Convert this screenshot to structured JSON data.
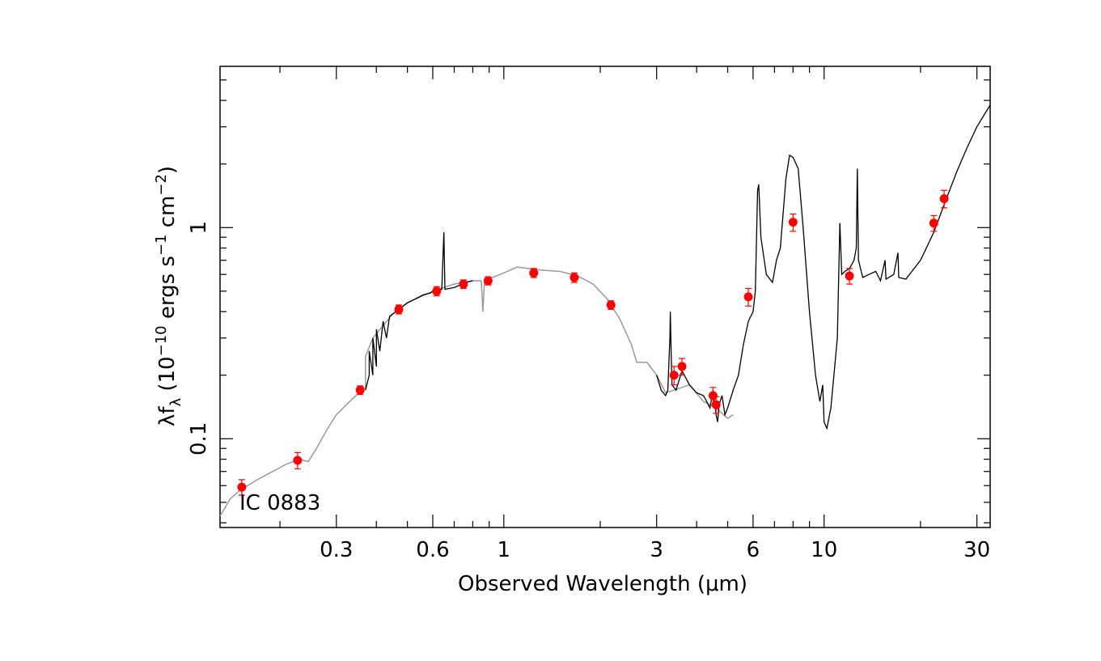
{
  "chart_data": {
    "type": "scatter",
    "annotation": "IC 0883",
    "xlabel": "Observed Wavelength (μm)",
    "ylabel": {
      "prefix": "λf",
      "sub": "λ",
      "base": " (10",
      "exp1": "−10",
      "mid": " ergs s",
      "exp2": "−1",
      "mid2": " cm",
      "exp3": "−2",
      "end": ")"
    },
    "xscale": "log",
    "yscale": "log",
    "xlim": [
      0.13,
      33
    ],
    "ylim": [
      0.038,
      5.8
    ],
    "x_tick_labels": [
      {
        "value": 0.3,
        "label": "0.3"
      },
      {
        "value": 0.6,
        "label": "0.6"
      },
      {
        "value": 1,
        "label": "1"
      },
      {
        "value": 3,
        "label": "3"
      },
      {
        "value": 6,
        "label": "6"
      },
      {
        "value": 10,
        "label": "10"
      },
      {
        "value": 30,
        "label": "30"
      }
    ],
    "y_tick_labels": [
      {
        "value": 0.1,
        "label": "0.1"
      },
      {
        "value": 1,
        "label": "1"
      }
    ],
    "photometry": {
      "color": "#ff0000",
      "points": [
        {
          "x": 0.152,
          "y": 0.059,
          "err": 0.005
        },
        {
          "x": 0.227,
          "y": 0.079,
          "err": 0.007
        },
        {
          "x": 0.356,
          "y": 0.17,
          "err": 0.008
        },
        {
          "x": 0.47,
          "y": 0.41,
          "err": 0.02
        },
        {
          "x": 0.617,
          "y": 0.5,
          "err": 0.025
        },
        {
          "x": 0.748,
          "y": 0.54,
          "err": 0.025
        },
        {
          "x": 0.893,
          "y": 0.56,
          "err": 0.025
        },
        {
          "x": 1.24,
          "y": 0.61,
          "err": 0.03
        },
        {
          "x": 1.66,
          "y": 0.58,
          "err": 0.03
        },
        {
          "x": 2.16,
          "y": 0.43,
          "err": 0.02
        },
        {
          "x": 3.4,
          "y": 0.2,
          "err": 0.02
        },
        {
          "x": 3.6,
          "y": 0.22,
          "err": 0.02
        },
        {
          "x": 4.5,
          "y": 0.16,
          "err": 0.015
        },
        {
          "x": 4.6,
          "y": 0.145,
          "err": 0.013
        },
        {
          "x": 5.8,
          "y": 0.47,
          "err": 0.045
        },
        {
          "x": 8.0,
          "y": 1.06,
          "err": 0.1
        },
        {
          "x": 12.0,
          "y": 0.59,
          "err": 0.05
        },
        {
          "x": 22.0,
          "y": 1.05,
          "err": 0.09
        },
        {
          "x": 23.7,
          "y": 1.37,
          "err": 0.13
        }
      ]
    },
    "spectrum_model": {
      "color": "#999999",
      "points": [
        [
          0.13,
          0.043
        ],
        [
          0.14,
          0.052
        ],
        [
          0.15,
          0.057
        ],
        [
          0.17,
          0.064
        ],
        [
          0.19,
          0.07
        ],
        [
          0.21,
          0.076
        ],
        [
          0.23,
          0.08
        ],
        [
          0.245,
          0.078
        ],
        [
          0.26,
          0.09
        ],
        [
          0.28,
          0.11
        ],
        [
          0.3,
          0.13
        ],
        [
          0.33,
          0.15
        ],
        [
          0.36,
          0.17
        ],
        [
          0.37,
          0.175
        ],
        [
          0.37,
          0.245
        ],
        [
          0.39,
          0.3
        ],
        [
          0.45,
          0.39
        ],
        [
          0.5,
          0.44
        ],
        [
          0.6,
          0.5
        ],
        [
          0.7,
          0.54
        ],
        [
          0.8,
          0.56
        ],
        [
          0.85,
          0.56
        ],
        [
          0.86,
          0.4
        ],
        [
          0.87,
          0.56
        ],
        [
          1.0,
          0.61
        ],
        [
          1.1,
          0.65
        ],
        [
          1.3,
          0.63
        ],
        [
          1.5,
          0.62
        ],
        [
          1.7,
          0.59
        ],
        [
          1.9,
          0.54
        ],
        [
          2.1,
          0.46
        ],
        [
          2.3,
          0.37
        ],
        [
          2.5,
          0.28
        ],
        [
          2.6,
          0.23
        ],
        [
          2.8,
          0.23
        ],
        [
          3.0,
          0.2
        ],
        [
          3.2,
          0.165
        ],
        [
          3.4,
          0.17
        ],
        [
          3.8,
          0.18
        ],
        [
          4.2,
          0.15
        ],
        [
          4.6,
          0.14
        ],
        [
          5.0,
          0.125
        ],
        [
          5.2,
          0.13
        ]
      ]
    },
    "spectrum_observed": {
      "color": "#000000",
      "segments": [
        [
          [
            0.37,
            0.17
          ],
          [
            0.38,
            0.2
          ],
          [
            0.38,
            0.26
          ],
          [
            0.39,
            0.2
          ],
          [
            0.39,
            0.3
          ],
          [
            0.4,
            0.22
          ],
          [
            0.4,
            0.33
          ],
          [
            0.41,
            0.26
          ],
          [
            0.42,
            0.36
          ],
          [
            0.43,
            0.3
          ],
          [
            0.44,
            0.38
          ],
          [
            0.46,
            0.4
          ],
          [
            0.48,
            0.42
          ],
          [
            0.5,
            0.44
          ],
          [
            0.53,
            0.46
          ],
          [
            0.56,
            0.48
          ],
          [
            0.59,
            0.49
          ],
          [
            0.6,
            0.5
          ],
          [
            0.64,
            0.51
          ],
          [
            0.65,
            0.95
          ],
          [
            0.655,
            0.51
          ],
          [
            0.7,
            0.52
          ],
          [
            0.76,
            0.55
          ],
          [
            0.8,
            0.56
          ]
        ],
        [
          [
            3.0,
            0.2
          ],
          [
            3.1,
            0.17
          ],
          [
            3.2,
            0.16
          ],
          [
            3.25,
            0.17
          ],
          [
            3.3,
            0.3
          ],
          [
            3.31,
            0.4
          ],
          [
            3.33,
            0.26
          ],
          [
            3.35,
            0.18
          ],
          [
            3.45,
            0.17
          ],
          [
            3.6,
            0.21
          ],
          [
            3.8,
            0.18
          ],
          [
            4.0,
            0.165
          ],
          [
            4.2,
            0.16
          ],
          [
            4.3,
            0.15
          ],
          [
            4.4,
            0.14
          ],
          [
            4.5,
            0.17
          ],
          [
            4.6,
            0.13
          ],
          [
            4.65,
            0.12
          ],
          [
            4.7,
            0.145
          ],
          [
            4.8,
            0.16
          ],
          [
            4.9,
            0.13
          ],
          [
            5.0,
            0.14
          ],
          [
            5.2,
            0.17
          ],
          [
            5.4,
            0.2
          ],
          [
            5.6,
            0.28
          ],
          [
            5.8,
            0.36
          ],
          [
            6.0,
            0.4
          ],
          [
            6.1,
            0.5
          ],
          [
            6.2,
            1.5
          ],
          [
            6.25,
            1.6
          ],
          [
            6.35,
            0.9
          ],
          [
            6.6,
            0.6
          ],
          [
            6.9,
            0.55
          ],
          [
            7.1,
            0.7
          ],
          [
            7.3,
            0.8
          ],
          [
            7.6,
            1.7
          ],
          [
            7.8,
            2.2
          ],
          [
            8.0,
            2.15
          ],
          [
            8.3,
            1.9
          ],
          [
            8.6,
            1.0
          ],
          [
            9.0,
            0.4
          ],
          [
            9.4,
            0.2
          ],
          [
            9.7,
            0.15
          ],
          [
            9.9,
            0.18
          ],
          [
            10.0,
            0.12
          ],
          [
            10.2,
            0.112
          ],
          [
            10.5,
            0.14
          ],
          [
            11.0,
            0.3
          ],
          [
            11.2,
            1.05
          ],
          [
            11.35,
            0.6
          ],
          [
            11.6,
            0.62
          ],
          [
            12.0,
            0.64
          ],
          [
            12.4,
            0.7
          ],
          [
            12.6,
            0.8
          ],
          [
            12.7,
            1.9
          ],
          [
            12.8,
            0.7
          ],
          [
            13.2,
            0.58
          ],
          [
            13.8,
            0.6
          ],
          [
            14.5,
            0.62
          ],
          [
            15.0,
            0.56
          ],
          [
            15.5,
            0.7
          ],
          [
            15.6,
            0.57
          ],
          [
            16.5,
            0.6
          ],
          [
            17.0,
            0.76
          ],
          [
            17.1,
            0.58
          ],
          [
            18.0,
            0.57
          ],
          [
            20.0,
            0.7
          ],
          [
            22.0,
            0.95
          ],
          [
            24.0,
            1.35
          ],
          [
            26.0,
            1.85
          ],
          [
            28.0,
            2.4
          ],
          [
            30.0,
            3.0
          ],
          [
            33.0,
            3.8
          ]
        ]
      ]
    }
  }
}
